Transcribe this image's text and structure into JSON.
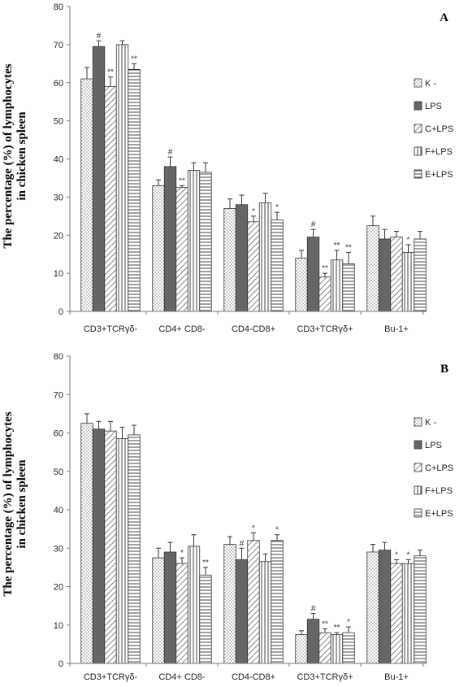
{
  "colors": {
    "axis": "#777777",
    "bar_stroke": "#333333",
    "lps_fill": "#666666"
  },
  "legend_entries": [
    "K -",
    "LPS",
    "C+LPS",
    "F+LPS",
    "E+LPS"
  ],
  "chart_data": [
    {
      "type": "bar",
      "panel_label": "A",
      "ylabel_line1": "The percentage (%) of lymphocytes",
      "ylabel_line2": "in chicken spleen",
      "ylim": [
        0,
        80
      ],
      "yticks": [
        0,
        10,
        20,
        30,
        40,
        50,
        60,
        70,
        80
      ],
      "legend_position": "right",
      "categories": [
        "CD3+TCRγδ-",
        "CD4+ CD8-",
        "CD4-CD8+",
        "CD3+TCRγδ+",
        "Bu-1+"
      ],
      "series": [
        {
          "name": "K -",
          "values": [
            61,
            33,
            27,
            14,
            22.5
          ],
          "errors": [
            3,
            1.5,
            2.5,
            2,
            2.5
          ],
          "marks": [
            "",
            "",
            "",
            "",
            ""
          ]
        },
        {
          "name": "LPS",
          "values": [
            69.5,
            38,
            28,
            19.5,
            19
          ],
          "errors": [
            1.5,
            2.5,
            2.5,
            2,
            2.5
          ],
          "marks": [
            "#",
            "#",
            "",
            "#",
            ""
          ]
        },
        {
          "name": "C+LPS",
          "values": [
            59,
            32.5,
            23.5,
            9,
            19.5
          ],
          "errors": [
            2.5,
            0.5,
            1.5,
            1,
            1.5
          ],
          "marks": [
            "**",
            "**",
            "*",
            "**",
            ""
          ]
        },
        {
          "name": "F+LPS",
          "values": [
            70,
            37,
            28.5,
            13.5,
            15.5
          ],
          "errors": [
            1,
            2,
            2.5,
            2.5,
            2
          ],
          "marks": [
            "",
            "",
            "",
            "**",
            "*"
          ]
        },
        {
          "name": "E+LPS",
          "values": [
            63.5,
            36.5,
            24,
            12.5,
            19
          ],
          "errors": [
            1.5,
            2.5,
            2,
            3,
            2
          ],
          "marks": [
            "**",
            "",
            "*",
            "**",
            ""
          ]
        }
      ]
    },
    {
      "type": "bar",
      "panel_label": "B",
      "ylabel_line1": "The percentage (%) of lymphocytes",
      "ylabel_line2": "in chicken spleen",
      "ylim": [
        0,
        80
      ],
      "yticks": [
        0,
        10,
        20,
        30,
        40,
        50,
        60,
        70,
        80
      ],
      "legend_position": "right",
      "categories": [
        "CD3+TCRγδ-",
        "CD4+ CD8-",
        "CD4-CD8+",
        "CD3+TCRγδ+",
        "Bu-1+"
      ],
      "series": [
        {
          "name": "K -",
          "values": [
            62.5,
            27.5,
            31,
            7.5,
            29
          ],
          "errors": [
            2.5,
            2.5,
            2,
            1,
            2
          ],
          "marks": [
            "",
            "",
            "",
            "",
            ""
          ]
        },
        {
          "name": "LPS",
          "values": [
            61,
            29,
            27,
            11.5,
            29.5
          ],
          "errors": [
            2,
            2.5,
            3,
            1.5,
            2
          ],
          "marks": [
            "",
            "",
            "#",
            "#",
            ""
          ]
        },
        {
          "name": "C+LPS",
          "values": [
            60.5,
            26,
            32,
            8,
            26
          ],
          "errors": [
            2.5,
            1.5,
            2,
            1,
            1
          ],
          "marks": [
            "",
            "*",
            "*",
            "**",
            "*"
          ]
        },
        {
          "name": "F+LPS",
          "values": [
            58.5,
            30.5,
            26.5,
            7.5,
            26
          ],
          "errors": [
            3,
            3,
            2,
            0.5,
            1
          ],
          "marks": [
            "",
            "",
            "",
            "**",
            "*"
          ]
        },
        {
          "name": "E+LPS",
          "values": [
            59.5,
            23,
            32,
            8,
            28
          ],
          "errors": [
            2.5,
            2,
            1.5,
            1.5,
            1.5
          ],
          "marks": [
            "",
            "**",
            "*",
            "*",
            ""
          ]
        }
      ]
    }
  ]
}
